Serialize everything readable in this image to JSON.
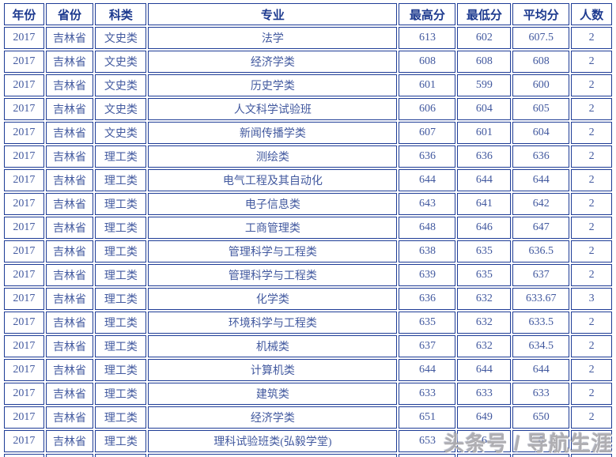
{
  "table": {
    "columns": [
      {
        "key": "year",
        "label": "年份"
      },
      {
        "key": "province",
        "label": "省份"
      },
      {
        "key": "category",
        "label": "科类"
      },
      {
        "key": "major",
        "label": "专业"
      },
      {
        "key": "max",
        "label": "最高分"
      },
      {
        "key": "min",
        "label": "最低分"
      },
      {
        "key": "avg",
        "label": "平均分"
      },
      {
        "key": "count",
        "label": "人数"
      }
    ],
    "rows": [
      {
        "year": "2017",
        "province": "吉林省",
        "category": "文史类",
        "major": "法学",
        "max": "613",
        "min": "602",
        "avg": "607.5",
        "count": "2"
      },
      {
        "year": "2017",
        "province": "吉林省",
        "category": "文史类",
        "major": "经济学类",
        "max": "608",
        "min": "608",
        "avg": "608",
        "count": "2"
      },
      {
        "year": "2017",
        "province": "吉林省",
        "category": "文史类",
        "major": "历史学类",
        "max": "601",
        "min": "599",
        "avg": "600",
        "count": "2"
      },
      {
        "year": "2017",
        "province": "吉林省",
        "category": "文史类",
        "major": "人文科学试验班",
        "max": "606",
        "min": "604",
        "avg": "605",
        "count": "2"
      },
      {
        "year": "2017",
        "province": "吉林省",
        "category": "文史类",
        "major": "新闻传播学类",
        "max": "607",
        "min": "601",
        "avg": "604",
        "count": "2"
      },
      {
        "year": "2017",
        "province": "吉林省",
        "category": "理工类",
        "major": "测绘类",
        "max": "636",
        "min": "636",
        "avg": "636",
        "count": "2"
      },
      {
        "year": "2017",
        "province": "吉林省",
        "category": "理工类",
        "major": "电气工程及其自动化",
        "max": "644",
        "min": "644",
        "avg": "644",
        "count": "2"
      },
      {
        "year": "2017",
        "province": "吉林省",
        "category": "理工类",
        "major": "电子信息类",
        "max": "643",
        "min": "641",
        "avg": "642",
        "count": "2"
      },
      {
        "year": "2017",
        "province": "吉林省",
        "category": "理工类",
        "major": "工商管理类",
        "max": "648",
        "min": "646",
        "avg": "647",
        "count": "2"
      },
      {
        "year": "2017",
        "province": "吉林省",
        "category": "理工类",
        "major": "管理科学与工程类",
        "max": "638",
        "min": "635",
        "avg": "636.5",
        "count": "2"
      },
      {
        "year": "2017",
        "province": "吉林省",
        "category": "理工类",
        "major": "管理科学与工程类",
        "max": "639",
        "min": "635",
        "avg": "637",
        "count": "2"
      },
      {
        "year": "2017",
        "province": "吉林省",
        "category": "理工类",
        "major": "化学类",
        "max": "636",
        "min": "632",
        "avg": "633.67",
        "count": "3"
      },
      {
        "year": "2017",
        "province": "吉林省",
        "category": "理工类",
        "major": "环境科学与工程类",
        "max": "635",
        "min": "632",
        "avg": "633.5",
        "count": "2"
      },
      {
        "year": "2017",
        "province": "吉林省",
        "category": "理工类",
        "major": "机械类",
        "max": "637",
        "min": "632",
        "avg": "634.5",
        "count": "2"
      },
      {
        "year": "2017",
        "province": "吉林省",
        "category": "理工类",
        "major": "计算机类",
        "max": "644",
        "min": "644",
        "avg": "644",
        "count": "2"
      },
      {
        "year": "2017",
        "province": "吉林省",
        "category": "理工类",
        "major": "建筑类",
        "max": "633",
        "min": "633",
        "avg": "633",
        "count": "2"
      },
      {
        "year": "2017",
        "province": "吉林省",
        "category": "理工类",
        "major": "经济学类",
        "max": "651",
        "min": "649",
        "avg": "650",
        "count": "2"
      },
      {
        "year": "2017",
        "province": "吉林省",
        "category": "理工类",
        "major": "理科试验班类(弘毅学堂)",
        "max": "653",
        "min": "6",
        "avg": "6",
        "count": ""
      }
    ],
    "partial_row_visible": true
  },
  "watermark": {
    "text": "头条号 / 导航生涯"
  },
  "colors": {
    "border": "#1e3c96",
    "header_text": "#1d3a8f",
    "cell_text": "#42599f",
    "background": "#ffffff",
    "watermark": "#abaaae"
  }
}
